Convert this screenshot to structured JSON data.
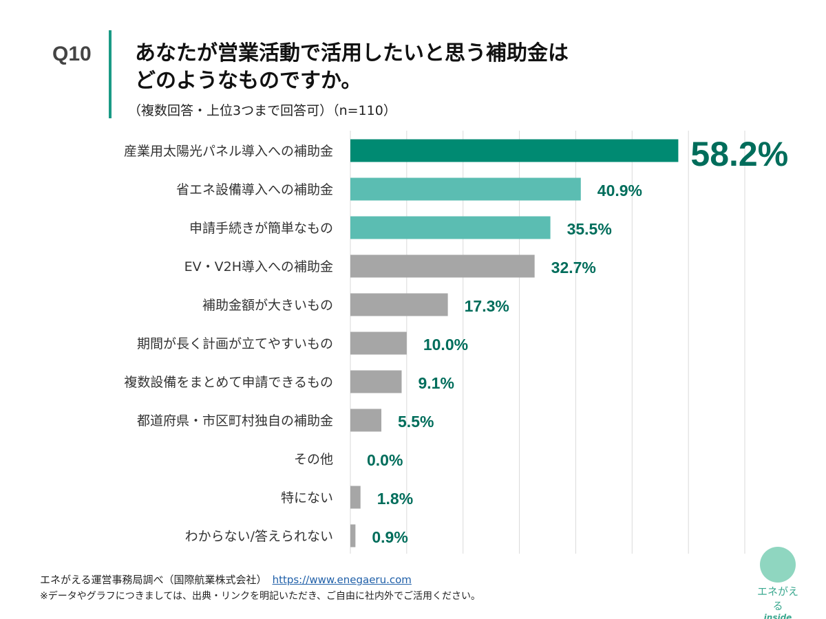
{
  "header": {
    "question_no": "Q10",
    "title_line1": "あなたが営業活動で活用したいと思う補助金は",
    "title_line2": "どのようなものですか。",
    "subtitle": "（複数回答・上位3つまで回答可）（n=110）"
  },
  "chart_data": {
    "type": "bar",
    "orientation": "horizontal",
    "categories": [
      "産業用太陽光パネル導入への補助金",
      "省エネ設備導入への補助金",
      "申請手続きが簡単なもの",
      "EV・V2H導入への補助金",
      "補助金額が大きいもの",
      "期間が長く計画が立てやすいもの",
      "複数設備をまとめて申請できるもの",
      "都道府県・市区町村独自の補助金",
      "その他",
      "特にない",
      "わからない/答えられない"
    ],
    "values": [
      58.2,
      40.9,
      35.5,
      32.7,
      17.3,
      10.0,
      9.1,
      5.5,
      0.0,
      1.8,
      0.9
    ],
    "labels": [
      "58.2%",
      "40.9%",
      "35.5%",
      "32.7%",
      "17.3%",
      "10.0%",
      "9.1%",
      "5.5%",
      "0.0%",
      "1.8%",
      "0.9%"
    ],
    "bar_colors": [
      "#008a72",
      "#5bbdb2",
      "#5bbdb2",
      "#a6a6a6",
      "#a6a6a6",
      "#a6a6a6",
      "#a6a6a6",
      "#a6a6a6",
      "#a6a6a6",
      "#a6a6a6",
      "#a6a6a6"
    ],
    "label_color": "#006d5b",
    "xlim": [
      0,
      70
    ],
    "grid": "vertical, every 10"
  },
  "footer": {
    "source": "エネがえる運営事務局調べ（国際航業株式会社）",
    "url": "https://www.enegaeru.com",
    "note": "※データやグラフにつきましては、出典・リンクを明記いただき、ご自由に社内外でご活用ください。"
  },
  "logo": {
    "text": "エネがえる",
    "sub": "inside"
  }
}
